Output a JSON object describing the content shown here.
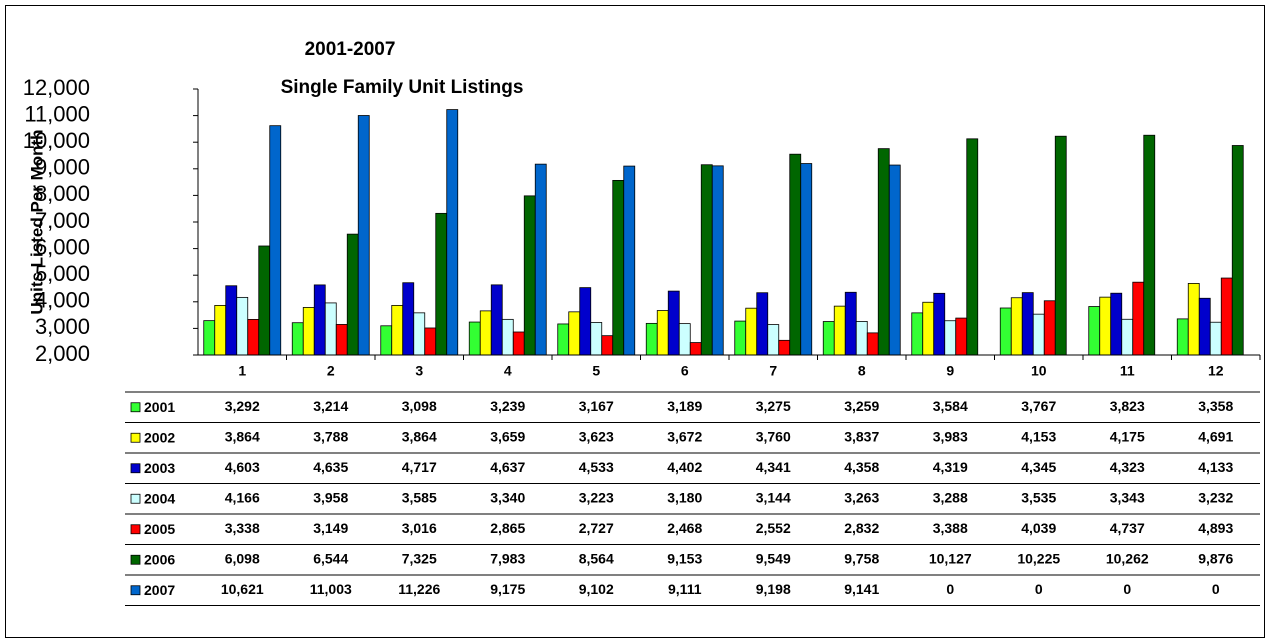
{
  "chart_data": {
    "type": "bar",
    "title": "2001-2007",
    "subtitle": "Single Family Unit Listings",
    "y_label": "Units Listed Per Month",
    "categories": [
      "1",
      "2",
      "3",
      "4",
      "5",
      "6",
      "7",
      "8",
      "9",
      "10",
      "11",
      "12"
    ],
    "ylim": [
      2000,
      12000
    ],
    "yticks": [
      {
        "value": 2000,
        "label": "2,000"
      },
      {
        "value": 3000,
        "label": "3,000"
      },
      {
        "value": 4000,
        "label": "4,000"
      },
      {
        "value": 5000,
        "label": "5,000"
      },
      {
        "value": 6000,
        "label": "6,000"
      },
      {
        "value": 7000,
        "label": "7,000"
      },
      {
        "value": 8000,
        "label": "8,000"
      },
      {
        "value": 9000,
        "label": "9,000"
      },
      {
        "value": 10000,
        "label": "10,000"
      },
      {
        "value": 11000,
        "label": "11,000"
      },
      {
        "value": 12000,
        "label": "12,000"
      }
    ],
    "grid": false,
    "series": [
      {
        "name": "2001",
        "color": "#33ff33",
        "values": [
          3292,
          3214,
          3098,
          3239,
          3167,
          3189,
          3275,
          3259,
          3584,
          3767,
          3823,
          3358
        ],
        "value_labels": [
          "3,292",
          "3,214",
          "3,098",
          "3,239",
          "3,167",
          "3,189",
          "3,275",
          "3,259",
          "3,584",
          "3,767",
          "3,823",
          "3,358"
        ]
      },
      {
        "name": "2002",
        "color": "#ffff00",
        "values": [
          3864,
          3788,
          3864,
          3659,
          3623,
          3672,
          3760,
          3837,
          3983,
          4153,
          4175,
          4691
        ],
        "value_labels": [
          "3,864",
          "3,788",
          "3,864",
          "3,659",
          "3,623",
          "3,672",
          "3,760",
          "3,837",
          "3,983",
          "4,153",
          "4,175",
          "4,691"
        ]
      },
      {
        "name": "2003",
        "color": "#0000cc",
        "values": [
          4603,
          4635,
          4717,
          4637,
          4533,
          4402,
          4341,
          4358,
          4319,
          4345,
          4323,
          4133
        ],
        "value_labels": [
          "4,603",
          "4,635",
          "4,717",
          "4,637",
          "4,533",
          "4,402",
          "4,341",
          "4,358",
          "4,319",
          "4,345",
          "4,323",
          "4,133"
        ]
      },
      {
        "name": "2004",
        "color": "#ccffff",
        "values": [
          4166,
          3958,
          3585,
          3340,
          3223,
          3180,
          3144,
          3263,
          3288,
          3535,
          3343,
          3232
        ],
        "value_labels": [
          "4,166",
          "3,958",
          "3,585",
          "3,340",
          "3,223",
          "3,180",
          "3,144",
          "3,263",
          "3,288",
          "3,535",
          "3,343",
          "3,232"
        ]
      },
      {
        "name": "2005",
        "color": "#ff0000",
        "values": [
          3338,
          3149,
          3016,
          2865,
          2727,
          2468,
          2552,
          2832,
          3388,
          4039,
          4737,
          4893
        ],
        "value_labels": [
          "3,338",
          "3,149",
          "3,016",
          "2,865",
          "2,727",
          "2,468",
          "2,552",
          "2,832",
          "3,388",
          "4,039",
          "4,737",
          "4,893"
        ]
      },
      {
        "name": "2006",
        "color": "#006600",
        "values": [
          6098,
          6544,
          7325,
          7983,
          8564,
          9153,
          9549,
          9758,
          10127,
          10225,
          10262,
          9876
        ],
        "value_labels": [
          "6,098",
          "6,544",
          "7,325",
          "7,983",
          "8,564",
          "9,153",
          "9,549",
          "9,758",
          "10,127",
          "10,225",
          "10,262",
          "9,876"
        ]
      },
      {
        "name": "2007",
        "color": "#0066cc",
        "values": [
          10621,
          11003,
          11226,
          9175,
          9102,
          9111,
          9198,
          9141,
          0,
          0,
          0,
          0
        ],
        "value_labels": [
          "10,621",
          "11,003",
          "11,226",
          "9,175",
          "9,102",
          "9,111",
          "9,198",
          "9,141",
          "0",
          "0",
          "0",
          "0"
        ]
      }
    ]
  }
}
